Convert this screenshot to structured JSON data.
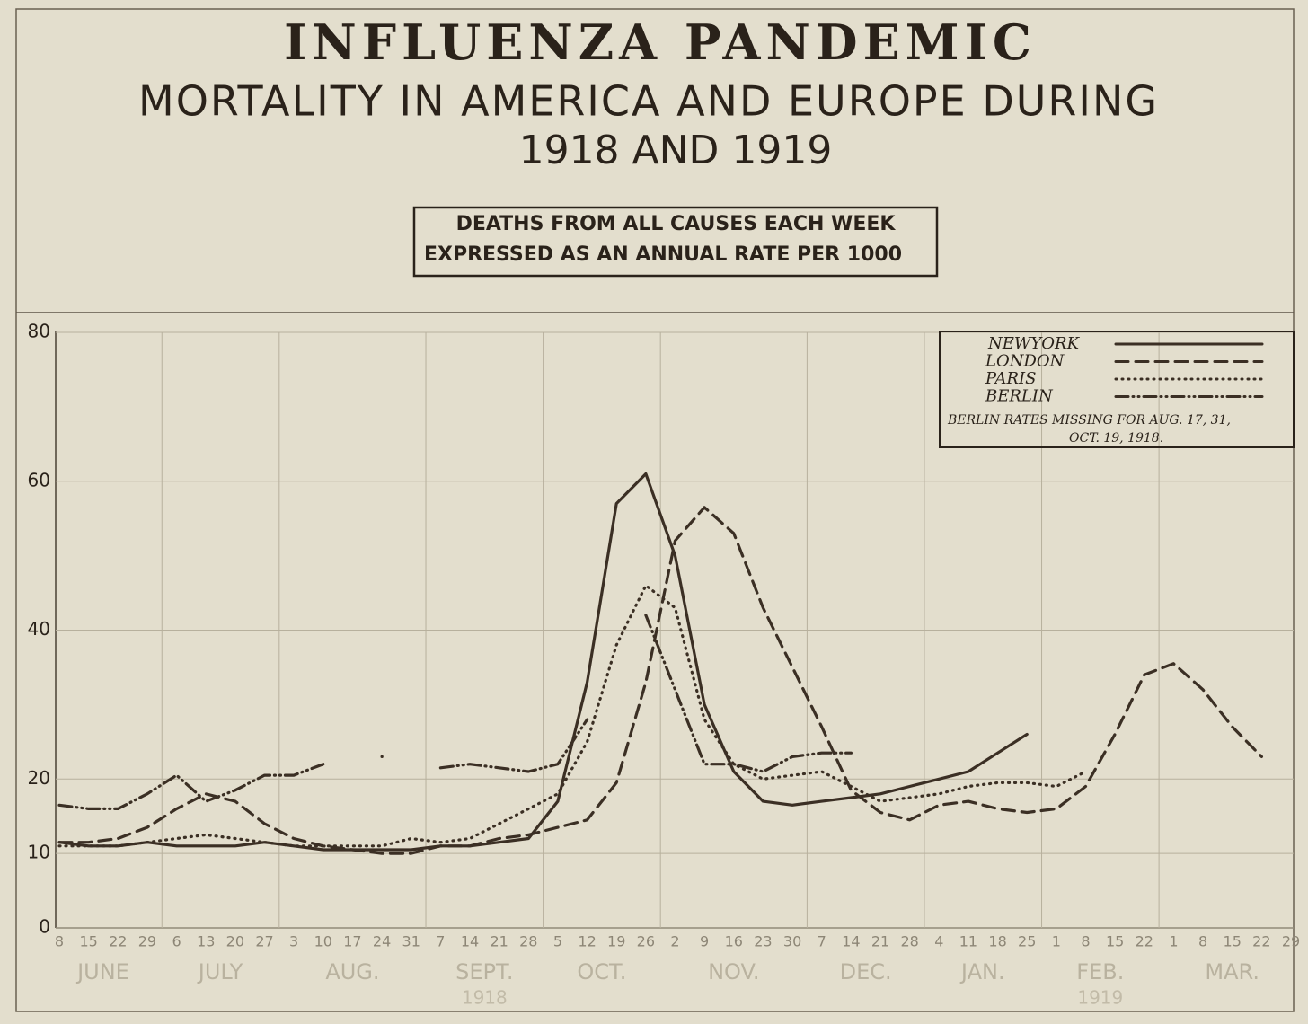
{
  "chart_data": {
    "type": "line",
    "title": "INFLUENZA PANDEMIC",
    "subtitle": "MORTALITY IN AMERICA AND EUROPE DURING",
    "subtitle2": "1918 AND 1919",
    "box_lines": [
      "DEATHS FROM ALL CAUSES EACH WEEK",
      "EXPRESSED AS AN ANNUAL RATE PER 1000"
    ],
    "categories": [
      "8",
      "15",
      "22",
      "29",
      "6",
      "13",
      "20",
      "27",
      "3",
      "10",
      "17",
      "24",
      "31",
      "7",
      "14",
      "21",
      "28",
      "5",
      "12",
      "19",
      "26",
      "2",
      "9",
      "16",
      "23",
      "30",
      "7",
      "14",
      "21",
      "28",
      "4",
      "11",
      "18",
      "25",
      "1",
      "8",
      "15",
      "22",
      "1",
      "8",
      "15",
      "22",
      "29"
    ],
    "months": [
      {
        "name": "JUNE"
      },
      {
        "name": "JULY"
      },
      {
        "name": "AUG."
      },
      {
        "name": "SEPT.",
        "year": "1918"
      },
      {
        "name": "OCT."
      },
      {
        "name": "NOV."
      },
      {
        "name": "DEC."
      },
      {
        "name": "JAN."
      },
      {
        "name": "FEB.",
        "year": "1919"
      },
      {
        "name": "MAR."
      }
    ],
    "ylim": [
      0,
      80
    ],
    "yticks": [
      0,
      10,
      20,
      40,
      60,
      80
    ],
    "grid": true,
    "legend_position": "upper right",
    "legend_note": [
      "BERLIN RATES MISSING FOR AUG. 17, 31,",
      "OCT. 19, 1918."
    ],
    "series": [
      {
        "name": "NEWYORK",
        "color": "#3b2f24",
        "dash": "solid",
        "values": [
          11.5,
          11,
          11,
          11.5,
          11,
          11,
          11,
          11.5,
          11,
          10.5,
          10.5,
          10.5,
          10.5,
          11,
          11,
          11.5,
          12,
          17,
          33,
          57,
          61,
          50,
          30,
          21,
          17,
          16.5,
          17,
          17.5,
          18,
          19,
          20,
          21,
          23.5,
          26,
          null,
          null,
          null,
          null,
          null,
          null,
          null,
          null,
          null
        ]
      },
      {
        "name": "LONDON",
        "color": "#3b2f24",
        "dash": "dashed",
        "values": [
          11.5,
          11.5,
          12,
          13.5,
          16,
          18,
          17,
          14,
          12,
          11,
          10.5,
          10,
          10,
          11,
          11,
          12,
          12.5,
          13.5,
          14.5,
          19.5,
          33,
          52,
          56.5,
          53,
          43,
          35,
          27,
          18.5,
          15.5,
          14.5,
          16.5,
          17,
          16,
          15.5,
          16,
          19,
          26,
          34,
          35.5,
          32,
          27,
          23,
          null
        ]
      },
      {
        "name": "PARIS",
        "color": "#3b2f24",
        "dash": "dotted",
        "values": [
          11,
          11,
          11,
          11.5,
          12,
          12.5,
          12,
          11.5,
          11,
          11,
          11,
          11,
          12,
          11.5,
          12,
          14,
          16,
          18,
          25,
          38,
          46,
          43,
          28,
          22,
          20,
          20.5,
          21,
          19,
          17,
          17.5,
          18,
          19,
          19.5,
          19.5,
          19,
          21,
          null,
          null,
          null,
          null,
          null,
          null,
          null
        ]
      },
      {
        "name": "BERLIN",
        "color": "#3b2f24",
        "dash": "dashdot",
        "values": [
          16.5,
          16,
          16,
          18,
          20.5,
          17,
          18.5,
          20.5,
          20.5,
          22,
          null,
          23,
          null,
          21.5,
          22,
          21.5,
          21,
          22,
          28,
          null,
          42,
          32,
          22,
          22,
          21,
          23,
          23.5,
          23.5,
          null,
          null,
          null,
          null,
          null,
          null,
          null,
          null,
          null,
          null,
          null,
          null,
          null,
          null,
          null
        ]
      }
    ]
  }
}
